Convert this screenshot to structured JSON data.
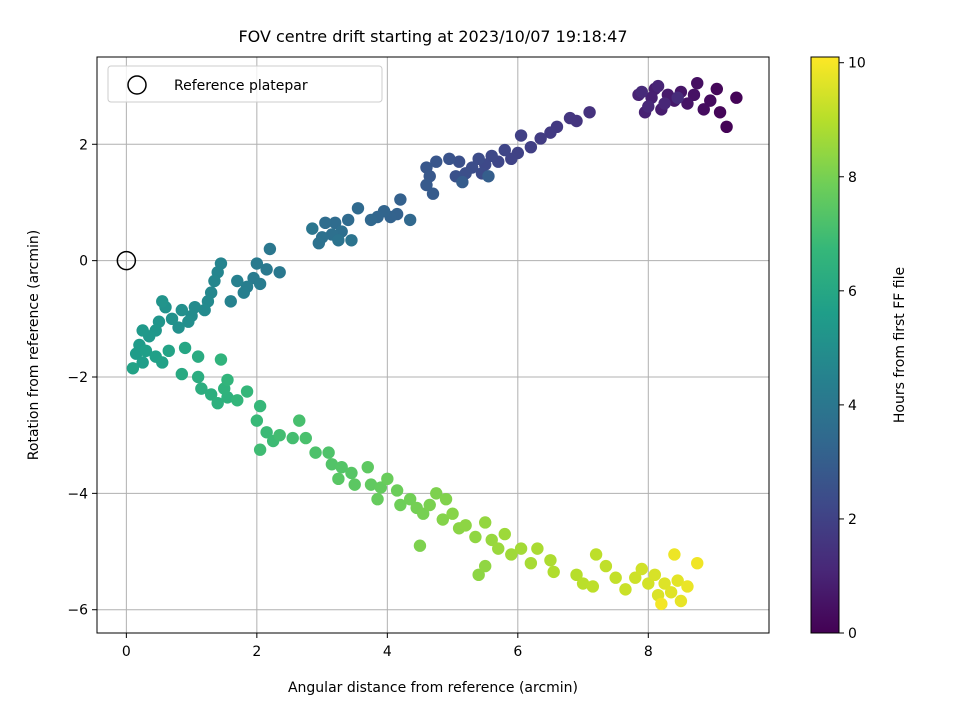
{
  "chart_data": {
    "type": "scatter",
    "title": "FOV centre drift starting at 2023/10/07 19:18:47",
    "xlabel": "Angular distance from reference (arcmin)",
    "ylabel": "Rotation from reference (arcmin)",
    "xlim": [
      -0.45,
      9.85
    ],
    "ylim": [
      -6.4,
      3.5
    ],
    "xticks": [
      0,
      2,
      4,
      6,
      8
    ],
    "yticks": [
      -6,
      -4,
      -2,
      0,
      2
    ],
    "xtick_labels": [
      "0",
      "2",
      "4",
      "6",
      "8"
    ],
    "ytick_labels": [
      "−6",
      "−4",
      "−2",
      "0",
      "2"
    ],
    "grid": true,
    "legend": {
      "placement": "top-left",
      "label": "Reference platepar"
    },
    "reference_point": {
      "x": 0,
      "y": 0
    },
    "colorbar": {
      "label": "Hours from first FF file",
      "colormap": "viridis",
      "range": [
        0,
        10.1
      ],
      "ticks": [
        0,
        2,
        4,
        6,
        8,
        10
      ],
      "tick_labels": [
        "0",
        "2",
        "4",
        "6",
        "8",
        "10"
      ]
    },
    "series": [
      {
        "color_by": "hours",
        "points": [
          [
            9.2,
            2.3,
            0.05
          ],
          [
            9.35,
            2.8,
            0.1
          ],
          [
            9.1,
            2.55,
            0.15
          ],
          [
            9.05,
            2.95,
            0.2
          ],
          [
            8.95,
            2.75,
            0.3
          ],
          [
            8.85,
            2.6,
            0.35
          ],
          [
            8.75,
            3.05,
            0.4
          ],
          [
            8.7,
            2.85,
            0.5
          ],
          [
            8.6,
            2.7,
            0.55
          ],
          [
            8.5,
            2.9,
            0.6
          ],
          [
            8.4,
            2.75,
            0.7
          ],
          [
            8.3,
            2.85,
            0.75
          ],
          [
            8.2,
            2.6,
            0.8
          ],
          [
            8.1,
            2.95,
            0.85
          ],
          [
            8.05,
            2.8,
            0.9
          ],
          [
            7.95,
            2.55,
            0.95
          ],
          [
            7.85,
            2.85,
            1.0
          ],
          [
            8.15,
            3.0,
            1.05
          ],
          [
            8.25,
            2.7,
            1.1
          ],
          [
            8.0,
            2.65,
            1.15
          ],
          [
            7.9,
            2.9,
            1.2
          ],
          [
            8.45,
            2.8,
            1.25
          ],
          [
            7.1,
            2.55,
            1.45
          ],
          [
            6.9,
            2.4,
            1.55
          ],
          [
            6.8,
            2.45,
            1.6
          ],
          [
            6.6,
            2.3,
            1.7
          ],
          [
            6.5,
            2.2,
            1.75
          ],
          [
            6.35,
            2.1,
            1.8
          ],
          [
            6.2,
            1.95,
            1.9
          ],
          [
            6.05,
            2.15,
            1.95
          ],
          [
            6.0,
            1.85,
            2.0
          ],
          [
            5.9,
            1.75,
            2.05
          ],
          [
            5.8,
            1.9,
            2.1
          ],
          [
            5.7,
            1.7,
            2.15
          ],
          [
            5.6,
            1.8,
            2.2
          ],
          [
            5.5,
            1.65,
            2.25
          ],
          [
            5.45,
            1.5,
            2.3
          ],
          [
            5.4,
            1.75,
            2.35
          ],
          [
            5.3,
            1.6,
            2.4
          ],
          [
            5.2,
            1.5,
            2.45
          ],
          [
            5.1,
            1.7,
            2.5
          ],
          [
            5.05,
            1.45,
            2.55
          ],
          [
            4.95,
            1.75,
            2.6
          ],
          [
            4.75,
            1.7,
            2.7
          ],
          [
            4.6,
            1.6,
            2.75
          ],
          [
            4.65,
            1.45,
            2.8
          ],
          [
            4.6,
            1.3,
            2.85
          ],
          [
            4.7,
            1.15,
            2.9
          ],
          [
            5.15,
            1.35,
            2.95
          ],
          [
            5.55,
            1.45,
            3.0
          ],
          [
            4.2,
            1.05,
            3.1
          ],
          [
            4.15,
            0.8,
            3.15
          ],
          [
            4.05,
            0.75,
            3.2
          ],
          [
            3.95,
            0.85,
            3.25
          ],
          [
            3.85,
            0.75,
            3.3
          ],
          [
            3.75,
            0.7,
            3.35
          ],
          [
            4.35,
            0.7,
            3.4
          ],
          [
            3.55,
            0.9,
            3.45
          ],
          [
            3.4,
            0.7,
            3.5
          ],
          [
            3.2,
            0.65,
            3.55
          ],
          [
            3.05,
            0.65,
            3.6
          ],
          [
            3.3,
            0.5,
            3.65
          ],
          [
            3.15,
            0.45,
            3.7
          ],
          [
            3.0,
            0.4,
            3.75
          ],
          [
            2.95,
            0.3,
            3.8
          ],
          [
            3.25,
            0.35,
            3.85
          ],
          [
            3.45,
            0.35,
            3.9
          ],
          [
            2.85,
            0.55,
            3.95
          ],
          [
            2.2,
            0.2,
            4.0
          ],
          [
            2.35,
            -0.2,
            4.05
          ],
          [
            2.15,
            -0.15,
            4.1
          ],
          [
            2.0,
            -0.05,
            4.15
          ],
          [
            1.95,
            -0.3,
            4.2
          ],
          [
            2.05,
            -0.4,
            4.25
          ],
          [
            1.85,
            -0.45,
            4.3
          ],
          [
            1.8,
            -0.55,
            4.35
          ],
          [
            1.7,
            -0.35,
            4.4
          ],
          [
            1.6,
            -0.7,
            4.5
          ],
          [
            1.45,
            -0.05,
            4.55
          ],
          [
            1.4,
            -0.2,
            4.6
          ],
          [
            1.35,
            -0.35,
            4.65
          ],
          [
            1.3,
            -0.55,
            4.7
          ],
          [
            1.25,
            -0.7,
            4.75
          ],
          [
            1.2,
            -0.85,
            4.8
          ],
          [
            1.05,
            -0.8,
            4.85
          ],
          [
            1.0,
            -0.95,
            4.9
          ],
          [
            0.95,
            -1.05,
            4.95
          ],
          [
            0.85,
            -0.85,
            5.0
          ],
          [
            0.8,
            -1.15,
            5.05
          ],
          [
            0.7,
            -1.0,
            5.1
          ],
          [
            0.6,
            -0.8,
            5.15
          ],
          [
            0.55,
            -0.7,
            5.2
          ],
          [
            0.5,
            -1.05,
            5.25
          ],
          [
            0.45,
            -1.2,
            5.3
          ],
          [
            0.35,
            -1.3,
            5.35
          ],
          [
            0.25,
            -1.2,
            5.4
          ],
          [
            0.2,
            -1.45,
            5.5
          ],
          [
            0.15,
            -1.6,
            5.55
          ],
          [
            0.25,
            -1.75,
            5.6
          ],
          [
            0.3,
            -1.55,
            5.65
          ],
          [
            0.45,
            -1.65,
            5.7
          ],
          [
            0.55,
            -1.75,
            5.75
          ],
          [
            0.1,
            -1.85,
            5.8
          ],
          [
            0.65,
            -1.55,
            5.85
          ],
          [
            0.9,
            -1.5,
            5.95
          ],
          [
            0.85,
            -1.95,
            6.1
          ],
          [
            1.1,
            -1.65,
            6.2
          ],
          [
            1.1,
            -2.0,
            6.25
          ],
          [
            1.15,
            -2.2,
            6.3
          ],
          [
            1.3,
            -2.3,
            6.35
          ],
          [
            1.4,
            -2.45,
            6.4
          ],
          [
            1.55,
            -2.35,
            6.45
          ],
          [
            1.5,
            -2.2,
            6.5
          ],
          [
            1.45,
            -1.7,
            6.55
          ],
          [
            1.55,
            -2.05,
            6.6
          ],
          [
            1.7,
            -2.4,
            6.65
          ],
          [
            1.85,
            -2.25,
            6.7
          ],
          [
            2.05,
            -2.5,
            6.75
          ],
          [
            2.0,
            -2.75,
            6.8
          ],
          [
            2.15,
            -2.95,
            6.85
          ],
          [
            2.25,
            -3.1,
            6.9
          ],
          [
            2.05,
            -3.25,
            6.95
          ],
          [
            2.35,
            -3.0,
            7.0
          ],
          [
            2.55,
            -3.05,
            7.05
          ],
          [
            2.65,
            -2.75,
            7.1
          ],
          [
            2.75,
            -3.05,
            7.15
          ],
          [
            2.9,
            -3.3,
            7.2
          ],
          [
            3.1,
            -3.3,
            7.25
          ],
          [
            3.15,
            -3.5,
            7.3
          ],
          [
            3.3,
            -3.55,
            7.35
          ],
          [
            3.45,
            -3.65,
            7.4
          ],
          [
            3.25,
            -3.75,
            7.45
          ],
          [
            3.5,
            -3.85,
            7.5
          ],
          [
            3.7,
            -3.55,
            7.55
          ],
          [
            3.75,
            -3.85,
            7.6
          ],
          [
            3.9,
            -3.9,
            7.65
          ],
          [
            3.85,
            -4.1,
            7.7
          ],
          [
            4.0,
            -3.75,
            7.75
          ],
          [
            4.15,
            -3.95,
            7.8
          ],
          [
            4.2,
            -4.2,
            7.85
          ],
          [
            4.35,
            -4.1,
            7.9
          ],
          [
            4.45,
            -4.25,
            7.95
          ],
          [
            4.55,
            -4.35,
            8.0
          ],
          [
            4.65,
            -4.2,
            8.05
          ],
          [
            4.75,
            -4.0,
            8.1
          ],
          [
            4.9,
            -4.1,
            8.15
          ],
          [
            4.85,
            -4.45,
            8.2
          ],
          [
            5.0,
            -4.35,
            8.25
          ],
          [
            5.1,
            -4.6,
            8.3
          ],
          [
            5.2,
            -4.55,
            8.35
          ],
          [
            5.35,
            -4.75,
            8.4
          ],
          [
            5.5,
            -4.5,
            8.45
          ],
          [
            5.6,
            -4.8,
            8.5
          ],
          [
            5.7,
            -4.95,
            8.55
          ],
          [
            5.8,
            -4.7,
            8.6
          ],
          [
            5.9,
            -5.05,
            8.65
          ],
          [
            6.05,
            -4.95,
            8.7
          ],
          [
            6.2,
            -5.2,
            8.75
          ],
          [
            6.3,
            -4.95,
            8.8
          ],
          [
            6.5,
            -5.15,
            8.85
          ],
          [
            6.55,
            -5.35,
            8.9
          ],
          [
            6.9,
            -5.4,
            9.0
          ],
          [
            7.0,
            -5.55,
            9.05
          ],
          [
            7.15,
            -5.6,
            9.1
          ],
          [
            7.35,
            -5.25,
            9.15
          ],
          [
            7.5,
            -5.45,
            9.2
          ],
          [
            7.65,
            -5.65,
            9.3
          ],
          [
            7.8,
            -5.45,
            9.35
          ],
          [
            7.9,
            -5.3,
            9.4
          ],
          [
            8.0,
            -5.55,
            9.45
          ],
          [
            8.1,
            -5.4,
            9.5
          ],
          [
            8.15,
            -5.75,
            9.55
          ],
          [
            8.25,
            -5.55,
            9.6
          ],
          [
            8.35,
            -5.7,
            9.65
          ],
          [
            8.45,
            -5.5,
            9.7
          ],
          [
            8.5,
            -5.85,
            9.75
          ],
          [
            8.6,
            -5.6,
            9.8
          ],
          [
            8.4,
            -5.05,
            9.85
          ],
          [
            8.75,
            -5.2,
            9.9
          ],
          [
            8.2,
            -5.9,
            9.95
          ],
          [
            5.4,
            -5.4,
            8.35
          ],
          [
            5.5,
            -5.25,
            8.4
          ],
          [
            4.5,
            -4.9,
            8.1
          ],
          [
            7.2,
            -5.05,
            9.1
          ]
        ]
      }
    ]
  }
}
